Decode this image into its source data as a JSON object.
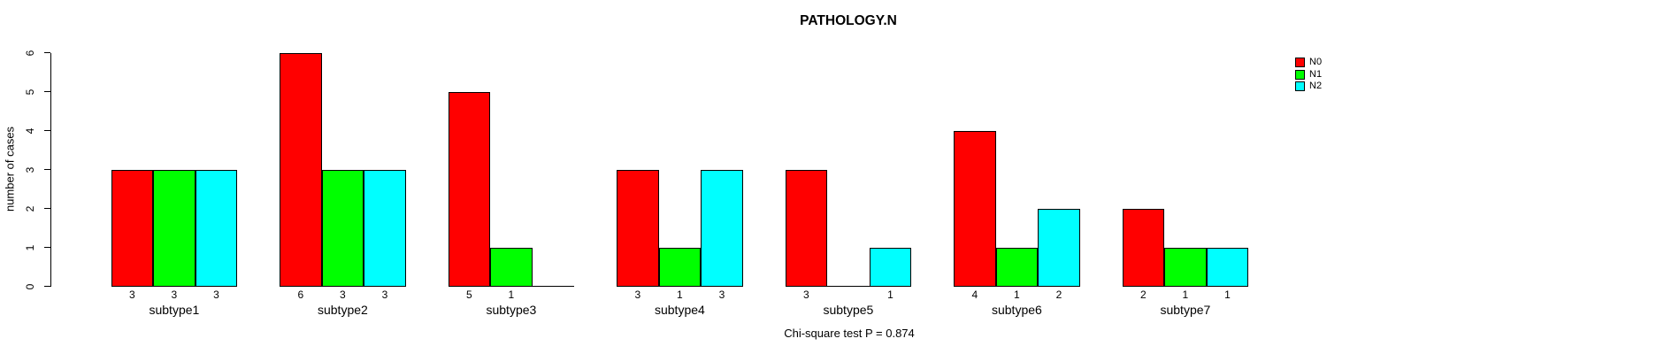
{
  "chart_data": {
    "type": "bar",
    "grouped": true,
    "title": "PATHOLOGY.N",
    "xlabel": "",
    "ylabel": "number of cases",
    "annotation": "Chi-square test P = 0.874",
    "categories": [
      "subtype1",
      "subtype2",
      "subtype3",
      "subtype4",
      "subtype5",
      "subtype6",
      "subtype7"
    ],
    "series": [
      {
        "name": "N0",
        "color": "#ff0000",
        "values": [
          3,
          6,
          5,
          3,
          3,
          4,
          2
        ]
      },
      {
        "name": "N1",
        "color": "#00ff00",
        "values": [
          3,
          3,
          1,
          1,
          0,
          1,
          1
        ]
      },
      {
        "name": "N2",
        "color": "#00ffff",
        "values": [
          3,
          3,
          0,
          3,
          1,
          2,
          1
        ]
      }
    ],
    "ylim": [
      0,
      6
    ],
    "yticks": [
      0,
      1,
      2,
      3,
      4,
      5,
      6
    ],
    "grid": false,
    "legend_position": "top-right",
    "value_labels_note": "bar values printed under each bar; zero-value bars drawn as flat line with no number"
  }
}
